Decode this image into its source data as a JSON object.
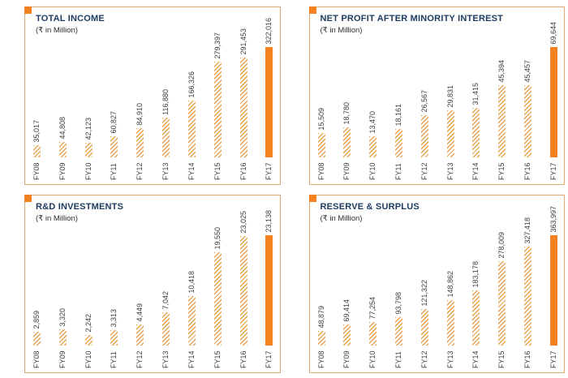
{
  "page": {
    "background": "#ffffff",
    "accent_orange": "#f5821f",
    "hatch_color": "#e8a254",
    "panel_border": "#ddab72",
    "title_color": "#1c3b5e"
  },
  "chart_data": [
    {
      "type": "bar",
      "title": "TOTAL INCOME",
      "subtitle": "(₹ in Million)",
      "categories": [
        "FY08",
        "FY09",
        "FY10",
        "FY11",
        "FY12",
        "FY13",
        "FY14",
        "FY15",
        "FY16",
        "FY17"
      ],
      "values": [
        35017,
        44808,
        42123,
        60827,
        84910,
        116880,
        166326,
        279397,
        291453,
        322016
      ],
      "value_labels": [
        "35,017",
        "44,808",
        "42,123",
        "60,827",
        "84,910",
        "116,880",
        "166,326",
        "279,397",
        "291,453",
        "322,016"
      ],
      "highlight_index": 9,
      "highlight_color": "#f5821f",
      "xlabel": "",
      "ylabel": "",
      "ylim": [
        0,
        322016
      ],
      "grid": false,
      "legend": "none"
    },
    {
      "type": "bar",
      "title": "NET PROFIT AFTER MINORITY INTEREST",
      "subtitle": "(₹ in Million)",
      "categories": [
        "FY08",
        "FY09",
        "FY10",
        "FY11",
        "FY12",
        "FY13",
        "FY14",
        "FY15",
        "FY16",
        "FY17"
      ],
      "values": [
        15509,
        18780,
        13470,
        18161,
        26567,
        29831,
        31415,
        45394,
        45457,
        69644
      ],
      "value_labels": [
        "15,509",
        "18,780",
        "13,470",
        "18,161",
        "26,567",
        "29,831",
        "31,415",
        "45,394",
        "45,457",
        "69,644"
      ],
      "highlight_index": 9,
      "highlight_color": "#f5821f",
      "xlabel": "",
      "ylabel": "",
      "ylim": [
        0,
        69644
      ],
      "grid": false,
      "legend": "none"
    },
    {
      "type": "bar",
      "title": "R&D INVESTMENTS",
      "subtitle": "(₹ in Million)",
      "categories": [
        "FY08",
        "FY09",
        "FY10",
        "FY11",
        "FY12",
        "FY13",
        "FY14",
        "FY15",
        "FY16",
        "FY17"
      ],
      "values": [
        2859,
        3320,
        2242,
        3313,
        4449,
        7042,
        10418,
        19550,
        23025,
        23138
      ],
      "value_labels": [
        "2,859",
        "3,320",
        "2,242",
        "3,313",
        "4,449",
        "7,042",
        "10,418",
        "19,550",
        "23,025",
        "23,138"
      ],
      "highlight_index": 9,
      "highlight_color": "#f5821f",
      "xlabel": "",
      "ylabel": "",
      "ylim": [
        0,
        23138
      ],
      "grid": false,
      "legend": "none"
    },
    {
      "type": "bar",
      "title": "RESERVE & SURPLUS",
      "subtitle": "(₹ in Million)",
      "categories": [
        "FY08",
        "FY09",
        "FY10",
        "FY11",
        "FY12",
        "FY13",
        "FY14",
        "FY15",
        "FY16",
        "FY17"
      ],
      "values": [
        48879,
        69414,
        77254,
        93798,
        121322,
        148862,
        183178,
        278009,
        327418,
        363997
      ],
      "value_labels": [
        "48,879",
        "69,414",
        "77,254",
        "93,798",
        "121,322",
        "148,862",
        "183,178",
        "278,009",
        "327,418",
        "363,997"
      ],
      "highlight_index": 9,
      "highlight_color": "#f5821f",
      "xlabel": "",
      "ylabel": "",
      "ylim": [
        0,
        363997
      ],
      "grid": false,
      "legend": "none"
    }
  ]
}
